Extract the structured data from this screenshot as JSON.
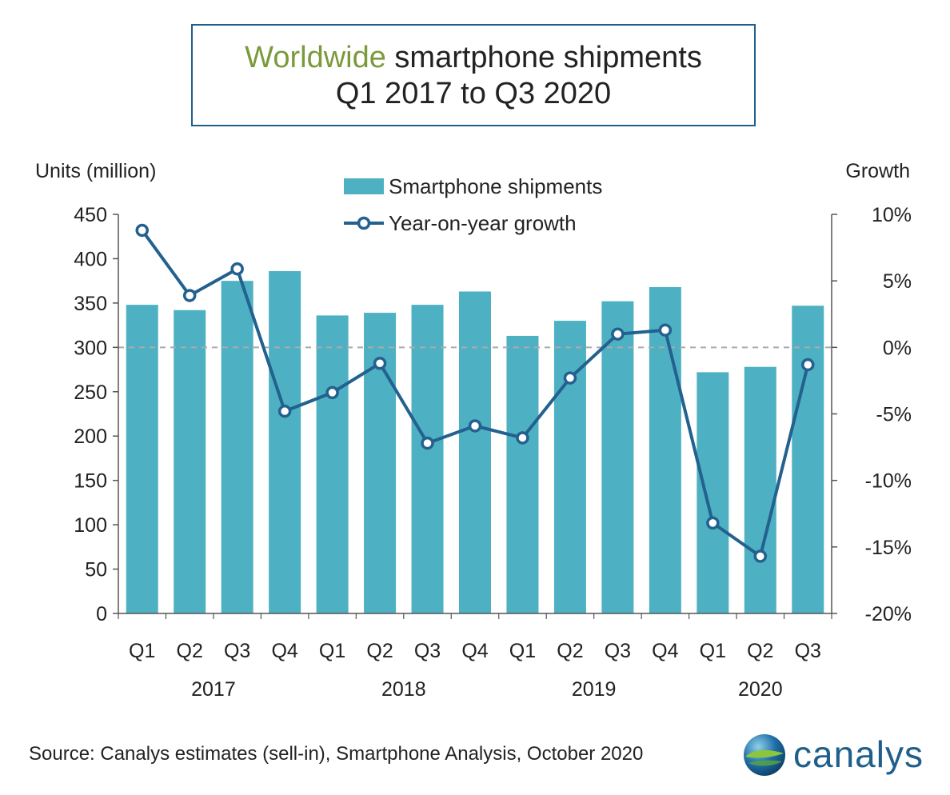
{
  "title": {
    "accent": "Worldwide",
    "line1_rest": " smartphone shipments",
    "line2": "Q1 2017 to Q3 2020"
  },
  "colors": {
    "bar": "#4eb1c3",
    "line": "#23618f",
    "accent": "#7a9a3c",
    "zero_line": "#aaaaaa",
    "axis": "#555555"
  },
  "chart_data": {
    "type": "bar",
    "title": "Worldwide smartphone shipments Q1 2017 to Q3 2020",
    "ylabel": "Units (million)",
    "y2label": "Growth",
    "ylim": [
      0,
      450
    ],
    "y2lim": [
      -20,
      10
    ],
    "yticks": [
      "450",
      "400",
      "350",
      "300",
      "250",
      "200",
      "150",
      "100",
      "50",
      "0"
    ],
    "y2ticks": [
      "10%",
      "5%",
      "0%",
      "-5%",
      "-10%",
      "-15%",
      "-20%"
    ],
    "categories": [
      "Q1",
      "Q2",
      "Q3",
      "Q4",
      "Q1",
      "Q2",
      "Q3",
      "Q4",
      "Q1",
      "Q2",
      "Q3",
      "Q4",
      "Q1",
      "Q2",
      "Q3"
    ],
    "years": [
      {
        "label": "2017",
        "from": 0,
        "to": 3
      },
      {
        "label": "2018",
        "from": 4,
        "to": 7
      },
      {
        "label": "2019",
        "from": 8,
        "to": 11
      },
      {
        "label": "2020",
        "from": 12,
        "to": 14
      }
    ],
    "series": [
      {
        "name": "Smartphone shipments",
        "type": "bar",
        "axis": "left",
        "values": [
          348,
          342,
          375,
          386,
          336,
          339,
          348,
          363,
          313,
          330,
          352,
          368,
          272,
          278,
          347
        ]
      },
      {
        "name": "Year-on-year growth",
        "type": "line",
        "axis": "right",
        "values": [
          8.8,
          3.9,
          5.9,
          -4.8,
          -3.4,
          -1.2,
          -7.2,
          -5.9,
          -6.8,
          -2.3,
          1.0,
          1.3,
          -13.2,
          -15.7,
          -1.3
        ]
      }
    ],
    "legend": [
      "Smartphone shipments",
      "Year-on-year growth"
    ],
    "legend_position": "top-center",
    "zero_line": "dashed"
  },
  "source": "Source: Canalys estimates (sell-in), Smartphone Analysis, October 2020",
  "logo": {
    "text": "canalys",
    "icon": "globe-icon"
  }
}
